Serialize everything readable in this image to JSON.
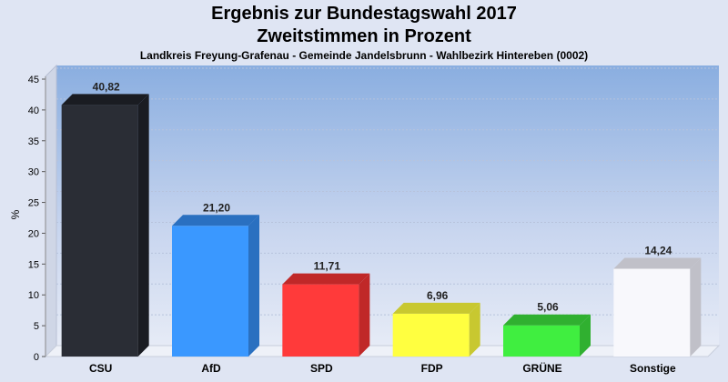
{
  "title": "Ergebnis zur Bundestagswahl 2017",
  "subtitle": "Zweitstimmen in Prozent",
  "caption": "Landkreis Freyung-Grafenau - Gemeinde Jandelsbrunn - Wahlbezirk Hintereben (0002)",
  "chart_data": {
    "type": "bar",
    "title": "Ergebnis zur Bundestagswahl 2017",
    "subtitle": "Zweitstimmen in Prozent",
    "xlabel": "",
    "ylabel": "%",
    "ylim": [
      0,
      45
    ],
    "yticks": [
      0,
      5,
      10,
      15,
      20,
      25,
      30,
      35,
      40,
      45
    ],
    "grid": true,
    "categories": [
      "CSU",
      "AfD",
      "SPD",
      "FDP",
      "GRÜNE",
      "Sonstige"
    ],
    "values": [
      40.82,
      21.2,
      11.71,
      6.96,
      5.06,
      14.24
    ],
    "value_labels": [
      "40,82",
      "21,20",
      "11,71",
      "6,96",
      "5,06",
      "14,24"
    ],
    "colors": [
      "#2a2d35",
      "#3a98ff",
      "#ff3a3a",
      "#ffff40",
      "#40ee40",
      "#f8f8fc"
    ],
    "side_colors": [
      "#1a1c22",
      "#2a70c0",
      "#c02828",
      "#c8c830",
      "#30b030",
      "#c0c0c8"
    ]
  }
}
